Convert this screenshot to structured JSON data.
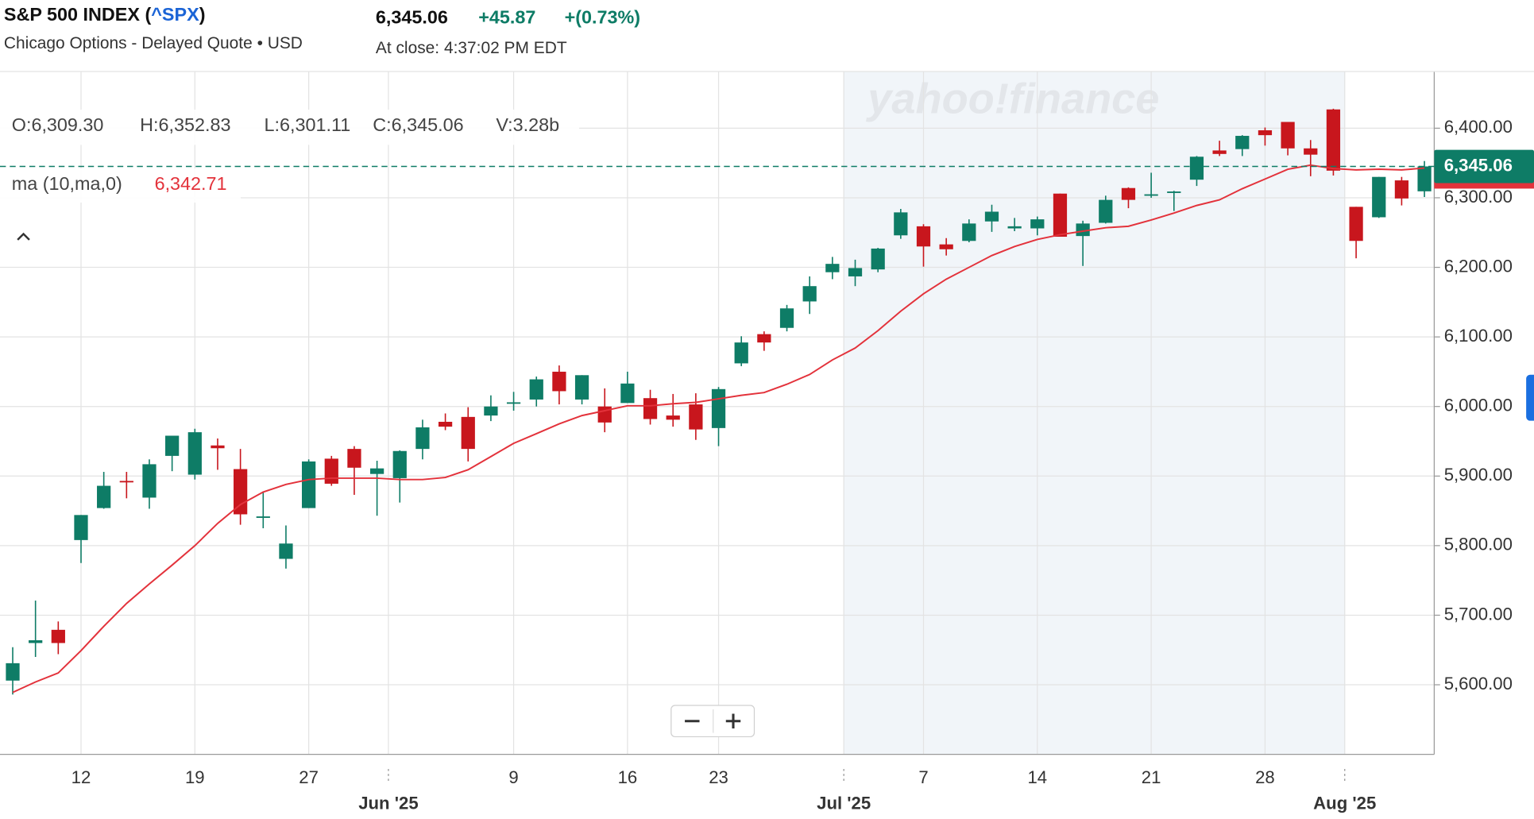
{
  "header": {
    "title_prefix": "S&P 500 INDEX (",
    "symbol": "^SPX",
    "title_suffix": ")",
    "subtitle": "Chicago Options - Delayed Quote • USD",
    "price": "6,345.06",
    "change": "+45.87",
    "change_percent": "+(0.73%)",
    "close_time": "At close: 4:37:02 PM EDT"
  },
  "legend": {
    "ohlc": [
      "O:6,309.30",
      "H:6,352.83",
      "L:6,301.11",
      "C:6,345.06",
      "V:3.28b"
    ]
  },
  "chart_data": {
    "type": "candlestick",
    "watermark": "yahoo!finance",
    "categories": [
      null,
      null,
      null,
      "12",
      null,
      null,
      null,
      null,
      "19",
      null,
      null,
      null,
      null,
      "27",
      null,
      null,
      null,
      null,
      null,
      null,
      null,
      null,
      "9",
      null,
      null,
      null,
      null,
      "16",
      null,
      null,
      null,
      "23",
      null,
      null,
      null,
      null,
      null,
      null,
      null,
      null,
      "7",
      null,
      null,
      null,
      null,
      "14",
      null,
      null,
      null,
      null,
      "21",
      null,
      null,
      null,
      null,
      "28",
      null,
      null,
      null,
      null,
      null,
      null,
      null
    ],
    "month_labels": [
      null,
      null,
      null,
      null,
      null,
      null,
      null,
      null,
      null,
      null,
      null,
      null,
      null,
      null,
      null,
      null,
      null,
      "Jun '25",
      null,
      null,
      null,
      null,
      null,
      null,
      null,
      null,
      null,
      null,
      null,
      null,
      null,
      null,
      null,
      null,
      null,
      null,
      null,
      "Jul '25",
      null,
      null,
      null,
      null,
      null,
      null,
      null,
      null,
      null,
      null,
      null,
      null,
      null,
      null,
      null,
      null,
      null,
      null,
      null,
      null,
      null,
      "Aug '25",
      null,
      null,
      null
    ],
    "open": [
      5606,
      5660,
      5679,
      5808,
      5854,
      5893,
      5869,
      5929,
      5902,
      5944,
      5910,
      5841,
      5781,
      5854,
      5925,
      5939,
      5903,
      5897,
      5939,
      5978,
      5985,
      5987,
      6004,
      6010,
      6050,
      6010,
      6000,
      6005,
      6012,
      5987,
      6003,
      5969,
      6062,
      6104,
      6113,
      6151,
      6193,
      6187,
      6197,
      6246,
      6259,
      6233,
      6238,
      6266,
      6256,
      6256,
      6306,
      6245,
      6264,
      6314,
      6304,
      6307,
      6326,
      6368,
      6370,
      6397,
      6409,
      6371,
      6427,
      6287,
      6272,
      6325,
      6309.3
    ],
    "high": [
      5654,
      5721,
      5691,
      5844,
      5906,
      5906,
      5924,
      5958,
      5968,
      5954,
      5939,
      5878,
      5829,
      5924,
      5929,
      5943,
      5922,
      5937,
      5981,
      5990,
      5999,
      6016,
      6021,
      6043,
      6059,
      6045,
      6026,
      6050,
      6024,
      6018,
      6019,
      6028,
      6101,
      6108,
      6146,
      6187,
      6215,
      6211,
      6228,
      6284,
      6262,
      6242,
      6269,
      6290,
      6271,
      6273,
      6306,
      6267,
      6303,
      6315,
      6336,
      6310,
      6360,
      6382,
      6390,
      6401,
      6409,
      6383,
      6428,
      6287,
      6330,
      6330,
      6352.83
    ],
    "low": [
      5586,
      5640,
      5644,
      5775,
      5853,
      5868,
      5853,
      5907,
      5895,
      5909,
      5830,
      5825,
      5767,
      5854,
      5886,
      5873,
      5843,
      5862,
      5924,
      5966,
      5921,
      5979,
      5994,
      6000,
      6003,
      6003,
      5963,
      6005,
      5974,
      5971,
      5952,
      5943,
      6058,
      6080,
      6108,
      6133,
      6183,
      6173,
      6193,
      6241,
      6201,
      6217,
      6236,
      6251,
      6252,
      6246,
      6244,
      6202,
      6263,
      6285,
      6300,
      6281,
      6317,
      6360,
      6360,
      6375,
      6361,
      6331,
      6332,
      6213,
      6271,
      6289,
      6301.11
    ],
    "close": [
      5631,
      5664,
      5660,
      5844,
      5886,
      5892,
      5917,
      5958,
      5963,
      5940,
      5845,
      5842,
      5803,
      5921,
      5889,
      5912,
      5911,
      5936,
      5970,
      5971,
      5939,
      6000,
      6006,
      6039,
      6022,
      6045,
      5977,
      6033,
      5982,
      5981,
      5967,
      6025,
      6092,
      6092,
      6141,
      6173,
      6205,
      6199,
      6227,
      6279,
      6230,
      6226,
      6263,
      6280,
      6259,
      6269,
      6244,
      6263,
      6297,
      6297,
      6305,
      6309,
      6359,
      6363,
      6389,
      6390,
      6371,
      6362,
      6339,
      6238,
      6330,
      6299,
      6345.06
    ],
    "up_color": "#0e7c66",
    "down_color": "#c8161d",
    "ma": {
      "name": "ma (10,ma,0)",
      "color": "#e3323b",
      "value_label": "6,342.71",
      "values": [
        5589,
        5604,
        5617,
        5649,
        5684,
        5717,
        5745,
        5772,
        5800,
        5832,
        5859,
        5877,
        5888,
        5895,
        5897,
        5897,
        5897,
        5895,
        5895,
        5898,
        5909,
        5928,
        5947,
        5961,
        5975,
        5987,
        5994,
        6001,
        6001,
        6004,
        6006,
        6011,
        6016,
        6020,
        6032,
        6046,
        6067,
        6084,
        6109,
        6137,
        6162,
        6183,
        6200,
        6217,
        6230,
        6240,
        6247,
        6252,
        6257,
        6259,
        6268,
        6278,
        6289,
        6297,
        6313,
        6327,
        6341,
        6347,
        6342,
        6340,
        6341,
        6340,
        6342.71
      ]
    },
    "ylim": [
      5500,
      6481.5
    ],
    "yticks": [
      {
        "value": 5600,
        "label": "5,600.00"
      },
      {
        "value": 5700,
        "label": "5,700.00"
      },
      {
        "value": 5800,
        "label": "5,800.00"
      },
      {
        "value": 5900,
        "label": "5,900.00"
      },
      {
        "value": 6000,
        "label": "6,000.00"
      },
      {
        "value": 6100,
        "label": "6,100.00"
      },
      {
        "value": 6200,
        "label": "6,200.00"
      },
      {
        "value": 6300,
        "label": "6,300.00"
      },
      {
        "value": 6400,
        "label": "6,400.00"
      }
    ],
    "grid": true
  }
}
